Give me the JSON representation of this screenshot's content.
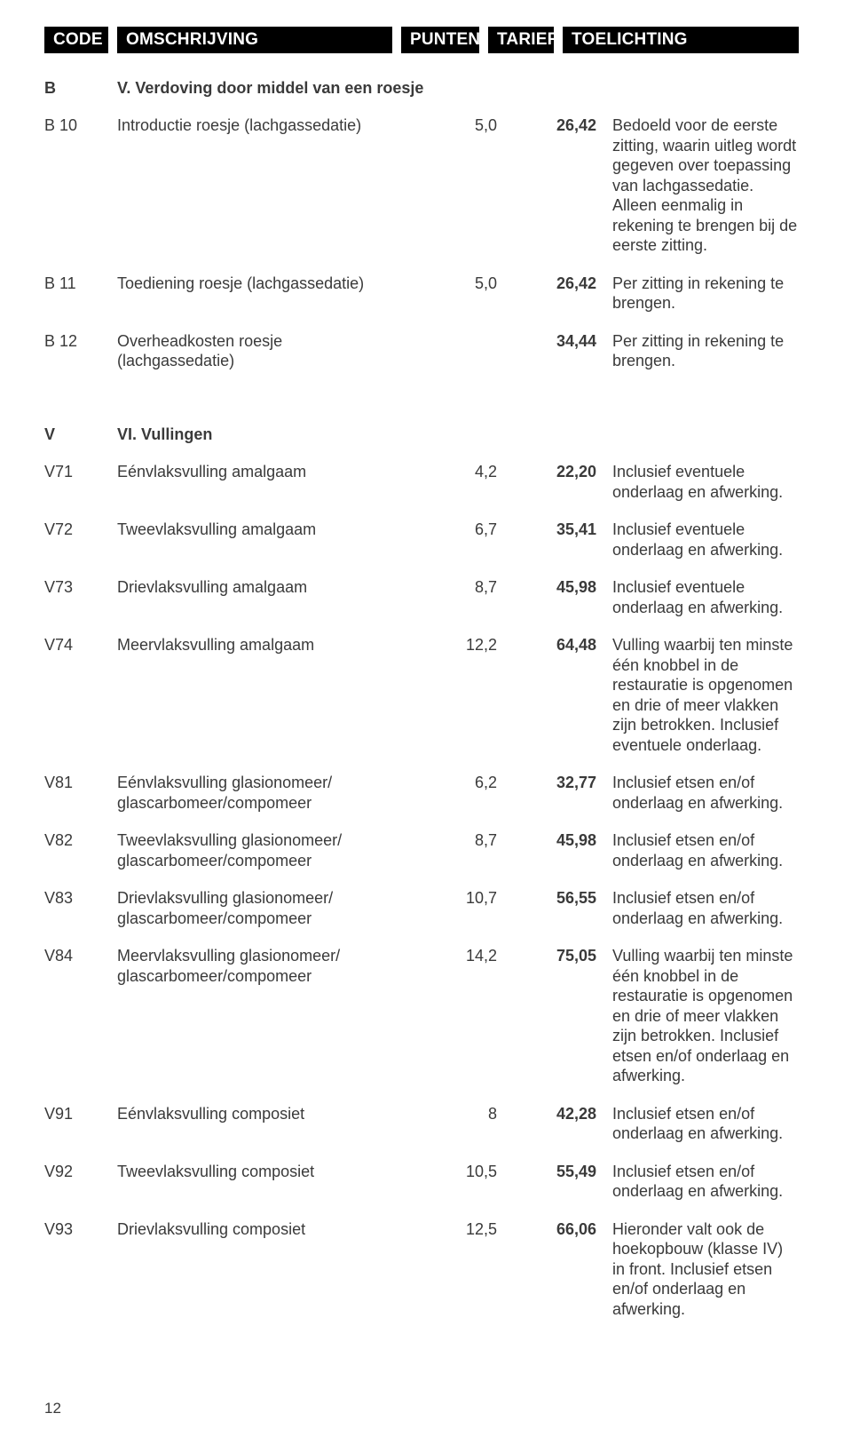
{
  "headers": {
    "code": "CODE",
    "oms": "OMSCHRIJVING",
    "pun": "PUNTEN",
    "tar": "TARIEF",
    "toe": "TOELICHTING"
  },
  "sectionB": {
    "code": "B",
    "title": "V.  Verdoving door middel van een roesje"
  },
  "rowsB": [
    {
      "code": "B 10",
      "oms": "Introductie roesje (lachgassedatie)",
      "pun": "5,0",
      "tar": "26,42",
      "toe": "Bedoeld voor de eerste zitting, waarin uitleg wordt gegeven over toepassing van lachgassedatie. Alleen eenmalig in rekening te brengen bij de eerste zitting."
    },
    {
      "code": "B 11",
      "oms": "Toediening roesje (lachgassedatie)",
      "pun": "5,0",
      "tar": "26,42",
      "toe": "Per zitting in rekening te brengen."
    },
    {
      "code": "B 12",
      "oms": "Overheadkosten roesje (lachgassedatie)",
      "pun": "",
      "tar": "34,44",
      "toe": "Per zitting in rekening te brengen."
    }
  ],
  "sectionV": {
    "code": "V",
    "title": "VI.  Vullingen"
  },
  "rowsV": [
    {
      "code": "V71",
      "oms": "Eénvlaksvulling amalgaam",
      "pun": "4,2",
      "tar": "22,20",
      "toe": "Inclusief eventuele onderlaag en afwerking."
    },
    {
      "code": "V72",
      "oms": "Tweevlaksvulling amalgaam",
      "pun": "6,7",
      "tar": "35,41",
      "toe": "Inclusief eventuele onderlaag en afwerking."
    },
    {
      "code": "V73",
      "oms": "Drievlaksvulling amalgaam",
      "pun": "8,7",
      "tar": "45,98",
      "toe": "Inclusief eventuele onderlaag en afwerking."
    },
    {
      "code": "V74",
      "oms": "Meervlaksvulling amalgaam",
      "pun": "12,2",
      "tar": "64,48",
      "toe": "Vulling waarbij ten minste één knobbel in de restauratie is opgenomen en drie of meer vlakken zijn betrokken. Inclusief eventuele onderlaag."
    },
    {
      "code": "V81",
      "oms": "Eénvlaksvulling glasionomeer/ glascarbomeer/compomeer",
      "pun": "6,2",
      "tar": "32,77",
      "toe": "Inclusief etsen en/of onderlaag en afwerking."
    },
    {
      "code": "V82",
      "oms": "Tweevlaksvulling glasionomeer/ glascarbomeer/compomeer",
      "pun": "8,7",
      "tar": "45,98",
      "toe": "Inclusief etsen en/of onderlaag en afwerking."
    },
    {
      "code": "V83",
      "oms": "Drievlaksvulling glasionomeer/ glascarbomeer/compomeer",
      "pun": "10,7",
      "tar": "56,55",
      "toe": "Inclusief etsen en/of onderlaag en afwerking."
    },
    {
      "code": "V84",
      "oms": "Meervlaksvulling glasionomeer/ glascarbomeer/compomeer",
      "pun": "14,2",
      "tar": "75,05",
      "toe": "Vulling waarbij ten minste één knobbel in de restauratie is opgenomen en drie of meer vlakken zijn betrokken. Inclusief etsen en/of onderlaag en afwerking."
    },
    {
      "code": "V91",
      "oms": "Eénvlaksvulling composiet",
      "pun": "8",
      "tar": "42,28",
      "toe": "Inclusief etsen en/of onderlaag en afwerking."
    },
    {
      "code": "V92",
      "oms": "Tweevlaksvulling composiet",
      "pun": "10,5",
      "tar": "55,49",
      "toe": "Inclusief etsen en/of onderlaag en afwerking."
    },
    {
      "code": "V93",
      "oms": "Drievlaksvulling composiet",
      "pun": "12,5",
      "tar": "66,06",
      "toe": "Hieronder valt ook de hoekopbouw (klasse IV) in front. Inclusief etsen en/of onderlaag en afwerking."
    }
  ],
  "page": "12"
}
